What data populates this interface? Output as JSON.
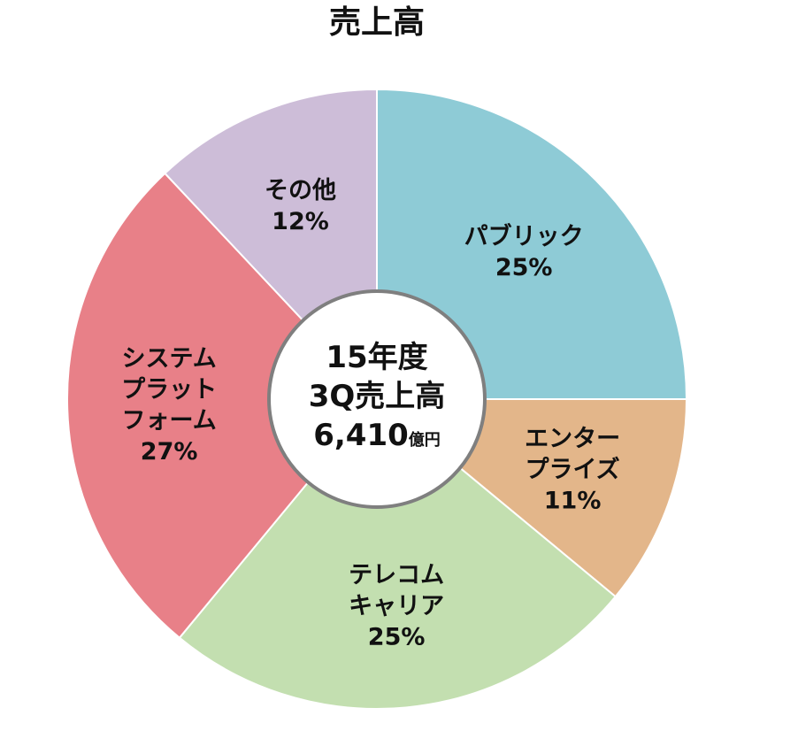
{
  "chart_data": {
    "type": "pie",
    "title": "売上高",
    "categories": [
      "パブリック",
      "エンター\nプライズ",
      "テレコム\nキャリア",
      "システム\nプラット\nフォーム",
      "その他"
    ],
    "values": [
      25,
      11,
      25,
      27,
      12
    ],
    "value_labels": [
      "25%",
      "11%",
      "25%",
      "27%",
      "12%"
    ],
    "colors": [
      "#8ecbd6",
      "#e3b68a",
      "#c3dfb0",
      "#e88088",
      "#cdbdd8"
    ],
    "center_lines": [
      "15年度",
      "3Q売上高"
    ],
    "center_value": "6,410",
    "center_unit": "億円"
  }
}
